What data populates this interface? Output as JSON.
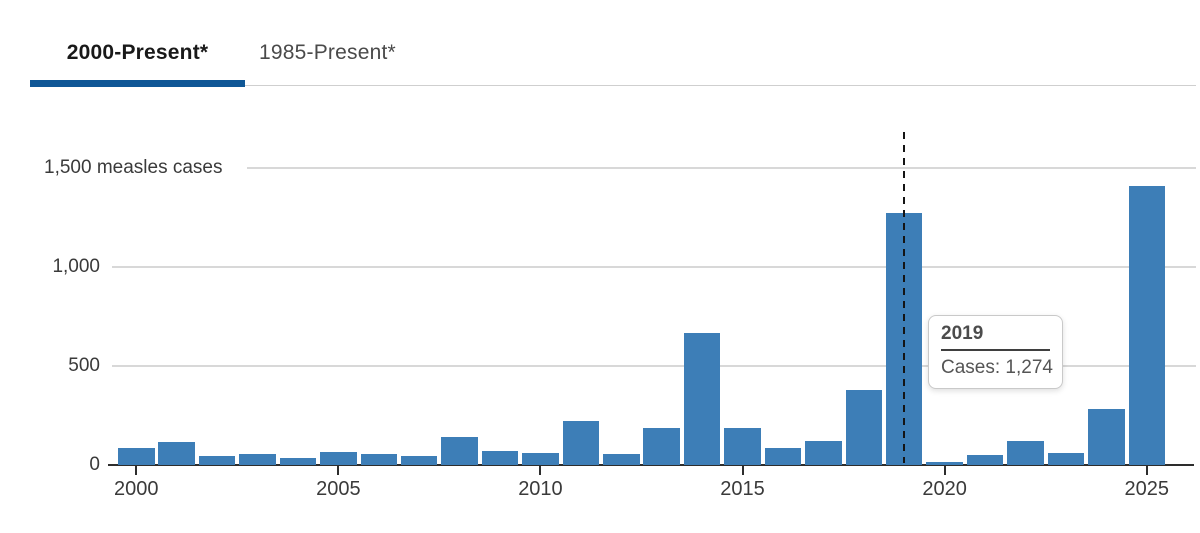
{
  "tabs": {
    "items": [
      {
        "label": "2000-Present*",
        "active": true
      },
      {
        "label": "1985-Present*",
        "active": false
      }
    ]
  },
  "tooltip": {
    "title": "2019",
    "body": "Cases: 1,274"
  },
  "colors": {
    "bar": "#3d7eb7",
    "tab_underline": "#0f5796",
    "gridline": "#d8d8d8",
    "axis_line": "#2d2d2d",
    "dashed_line": "#141414",
    "axis_text": "#3a3a3a"
  },
  "chart_data": {
    "type": "bar",
    "title": "",
    "xlabel": "",
    "ylabel": "measles cases",
    "ylim": [
      0,
      1500
    ],
    "grid": true,
    "y_ticks": [
      0,
      500,
      1000,
      1500
    ],
    "y_tick_labels": [
      "0",
      "500",
      "1,000",
      "1,500 measles cases"
    ],
    "x_tick_labels": [
      "2000",
      "2005",
      "2010",
      "2015",
      "2020",
      "2025"
    ],
    "categories": [
      "2000",
      "2001",
      "2002",
      "2003",
      "2004",
      "2005",
      "2006",
      "2007",
      "2008",
      "2009",
      "2010",
      "2011",
      "2012",
      "2013",
      "2014",
      "2015",
      "2016",
      "2017",
      "2018",
      "2019",
      "2020",
      "2021",
      "2022",
      "2023",
      "2024",
      "2025"
    ],
    "values": [
      86,
      116,
      44,
      56,
      37,
      66,
      55,
      43,
      140,
      71,
      63,
      220,
      55,
      187,
      667,
      188,
      86,
      120,
      381,
      1274,
      13,
      49,
      121,
      59,
      285,
      1408
    ],
    "highlight": {
      "year": "2019",
      "value": 1274,
      "marker": "dashed-line"
    }
  }
}
